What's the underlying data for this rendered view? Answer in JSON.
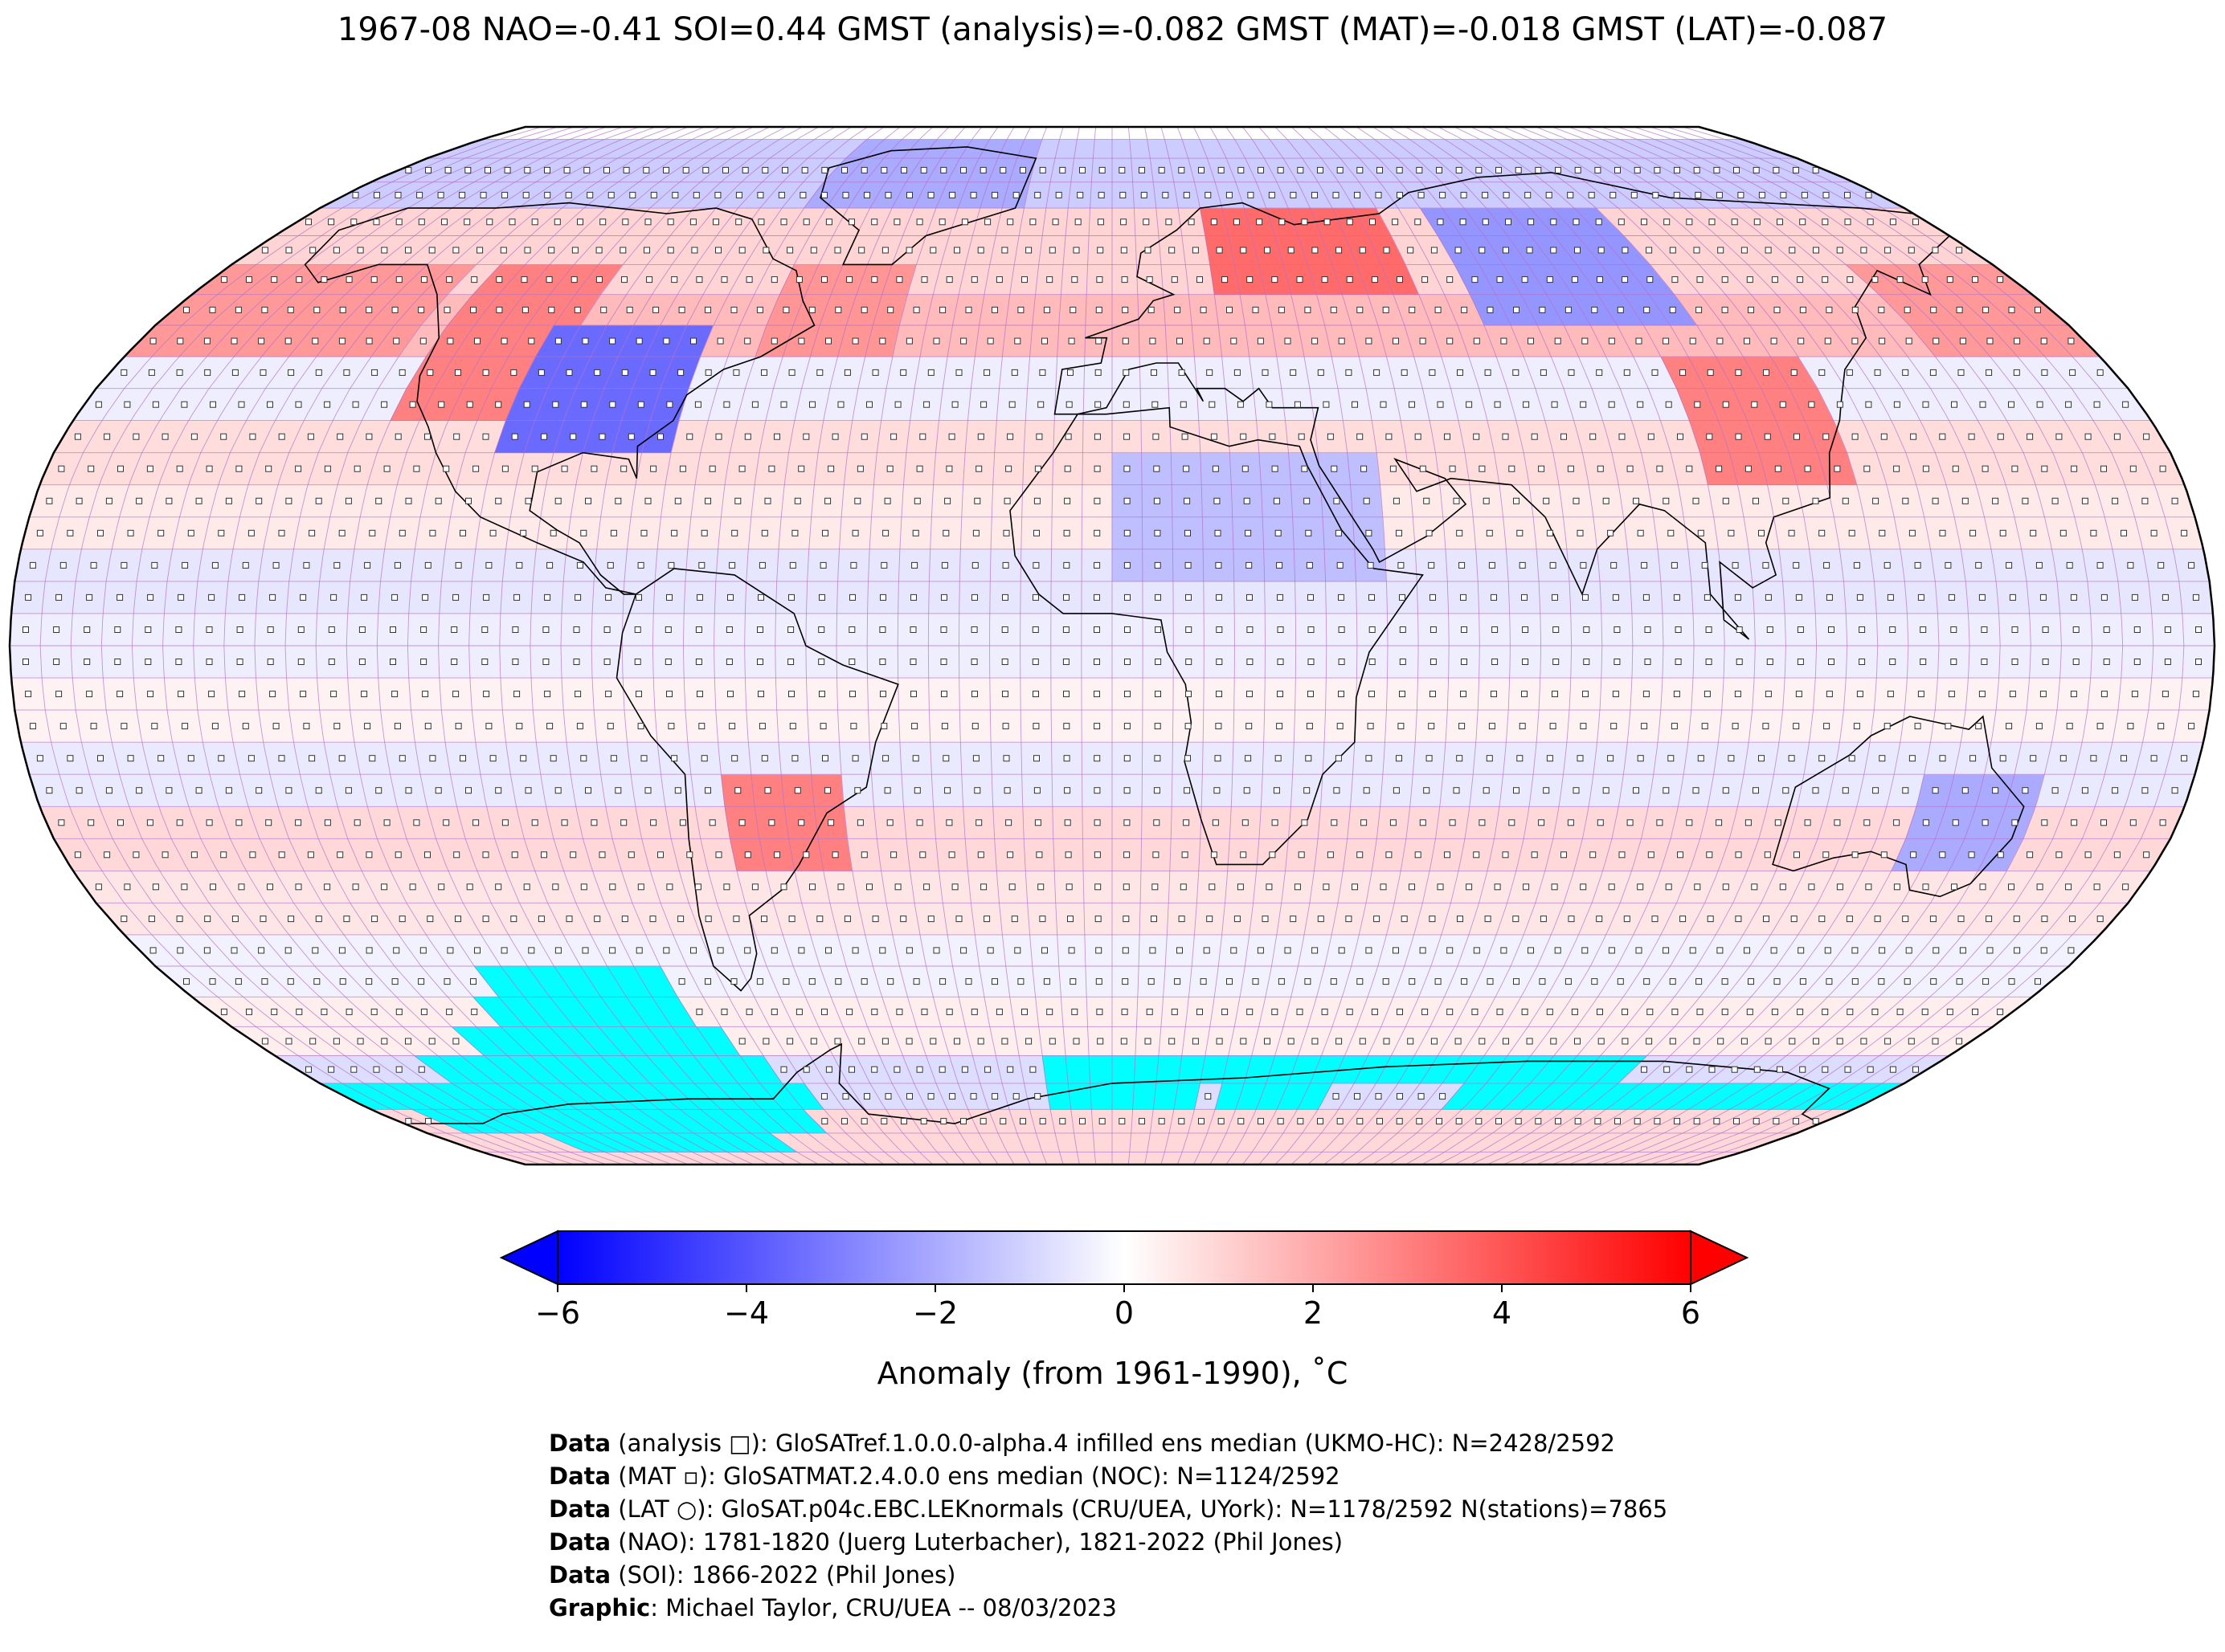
{
  "title": "1967-08 NAO=-0.41 SOI=0.44 GMST (analysis)=-0.082 GMST (MAT)=-0.018 GMST (LAT)=-0.087",
  "map": {
    "projection": "Robinson",
    "colors": {
      "cold": "#0000ff",
      "neutral": "#ffffff",
      "warm": "#ff0000",
      "missing": "#00ffff",
      "grid": "#b473c7",
      "coast": "#000000"
    },
    "anomaly_bands": [
      {
        "lat_from": 70,
        "lat_to": 84,
        "anomaly": -1.2
      },
      {
        "lat_from": 55,
        "lat_to": 70,
        "anomaly": 1.0
      },
      {
        "lat_from": 45,
        "lat_to": 55,
        "anomaly": 1.6
      },
      {
        "lat_from": 35,
        "lat_to": 45,
        "anomaly": -0.4
      },
      {
        "lat_from": 25,
        "lat_to": 35,
        "anomaly": 0.8
      },
      {
        "lat_from": 15,
        "lat_to": 25,
        "anomaly": 0.5
      },
      {
        "lat_from": 5,
        "lat_to": 15,
        "anomaly": -0.6
      },
      {
        "lat_from": -5,
        "lat_to": 5,
        "anomaly": -0.4
      },
      {
        "lat_from": -15,
        "lat_to": -5,
        "anomaly": 0.3
      },
      {
        "lat_from": -25,
        "lat_to": -15,
        "anomaly": -0.5
      },
      {
        "lat_from": -35,
        "lat_to": -25,
        "anomaly": 0.9
      },
      {
        "lat_from": -45,
        "lat_to": -35,
        "anomaly": 0.6
      },
      {
        "lat_from": -55,
        "lat_to": -45,
        "anomaly": -0.3
      },
      {
        "lat_from": -65,
        "lat_to": -55,
        "anomaly": 0.4
      },
      {
        "lat_from": -75,
        "lat_to": -65,
        "anomaly": -0.8
      },
      {
        "lat_from": -90,
        "lat_to": -75,
        "anomaly": 0.9
      }
    ],
    "anomaly_regions": [
      {
        "name": "north-america-west",
        "lon_from": -125,
        "lon_to": -100,
        "lat_from": 35,
        "lat_to": 60,
        "anomaly": 3.0
      },
      {
        "name": "north-america-central",
        "lon_from": -105,
        "lon_to": -75,
        "lat_from": 28,
        "lat_to": 50,
        "anomaly": -3.5
      },
      {
        "name": "north-atlantic-west",
        "lon_from": -65,
        "lon_to": -40,
        "lat_from": 45,
        "lat_to": 60,
        "anomaly": 2.5
      },
      {
        "name": "greenland",
        "lon_from": -70,
        "lon_to": -20,
        "lat_from": 70,
        "lat_to": 84,
        "anomaly": -2.0
      },
      {
        "name": "scandinavia-russia",
        "lon_from": 20,
        "lon_to": 60,
        "lat_from": 55,
        "lat_to": 72,
        "anomaly": 3.5
      },
      {
        "name": "central-siberia",
        "lon_from": 70,
        "lon_to": 110,
        "lat_from": 50,
        "lat_to": 70,
        "anomaly": -2.5
      },
      {
        "name": "east-china",
        "lon_from": 100,
        "lon_to": 125,
        "lat_from": 25,
        "lat_to": 45,
        "anomaly": 3.0
      },
      {
        "name": "north-africa",
        "lon_from": 0,
        "lon_to": 45,
        "lat_from": 10,
        "lat_to": 30,
        "anomaly": -1.5
      },
      {
        "name": "south-america-south",
        "lon_from": -65,
        "lon_to": -45,
        "lat_from": -35,
        "lat_to": -20,
        "anomaly": 3.0
      },
      {
        "name": "east-australia",
        "lon_from": 135,
        "lon_to": 155,
        "lat_from": -35,
        "lat_to": -20,
        "anomaly": -2.0
      },
      {
        "name": "north-pacific-east",
        "lon_from": -180,
        "lon_to": -130,
        "lat_from": 45,
        "lat_to": 60,
        "anomaly": 2.4
      },
      {
        "name": "north-pacific-west",
        "lon_from": 150,
        "lon_to": 180,
        "lat_from": 45,
        "lat_to": 60,
        "anomaly": 2.4
      }
    ],
    "missing_cells": [
      {
        "lon_from": -120,
        "lon_to": -85,
        "lat_from": -55,
        "lat_to": -50
      },
      {
        "lon_from": -125,
        "lon_to": -85,
        "lat_from": -60,
        "lat_to": -55
      },
      {
        "lon_from": -135,
        "lon_to": -80,
        "lat_from": -65,
        "lat_to": -60
      },
      {
        "lon_from": -150,
        "lon_to": -75,
        "lat_from": -70,
        "lat_to": -65
      },
      {
        "lon_from": -180,
        "lon_to": -70,
        "lat_from": -75,
        "lat_to": -70
      },
      {
        "lon_from": -170,
        "lon_to": -75,
        "lat_from": -80,
        "lat_to": -75
      },
      {
        "lon_from": -150,
        "lon_to": -90,
        "lat_from": -85,
        "lat_to": -80
      },
      {
        "lon_from": -15,
        "lon_to": 115,
        "lat_from": -70,
        "lat_to": -65
      },
      {
        "lon_from": -15,
        "lon_to": 20,
        "lat_from": -75,
        "lat_to": -70
      },
      {
        "lon_from": 25,
        "lon_to": 50,
        "lat_from": -75,
        "lat_to": -70
      },
      {
        "lon_from": 80,
        "lon_to": 180,
        "lat_from": -75,
        "lat_to": -70
      }
    ]
  },
  "colorbar": {
    "min": -6,
    "max": 6,
    "ticks": [
      "−6",
      "−4",
      "−2",
      "0",
      "2",
      "4",
      "6"
    ],
    "tick_values": [
      -6,
      -4,
      -2,
      0,
      2,
      4,
      6
    ],
    "label": "Anomaly (from 1961-1990), ˚C"
  },
  "credits": [
    {
      "key": "Data",
      "text": " (analysis □): GloSATref.1.0.0.0-alpha.4 infilled ens median (UKMO-HC): N=2428/2592"
    },
    {
      "key": "Data",
      "text": " (MAT ▫): GloSATMAT.2.4.0.0 ens median (NOC): N=1124/2592"
    },
    {
      "key": "Data",
      "text": " (LAT ○): GloSAT.p04c.EBC.LEKnormals (CRU/UEA, UYork): N=1178/2592 N(stations)=7865"
    },
    {
      "key": "Data",
      "text": " (NAO): 1781-1820 (Juerg Luterbacher), 1821-2022 (Phil Jones)"
    },
    {
      "key": "Data",
      "text": " (SOI): 1866-2022 (Phil Jones)"
    },
    {
      "key": "Graphic",
      "text": ": Michael Taylor, CRU/UEA -- 08/03/2023"
    }
  ]
}
